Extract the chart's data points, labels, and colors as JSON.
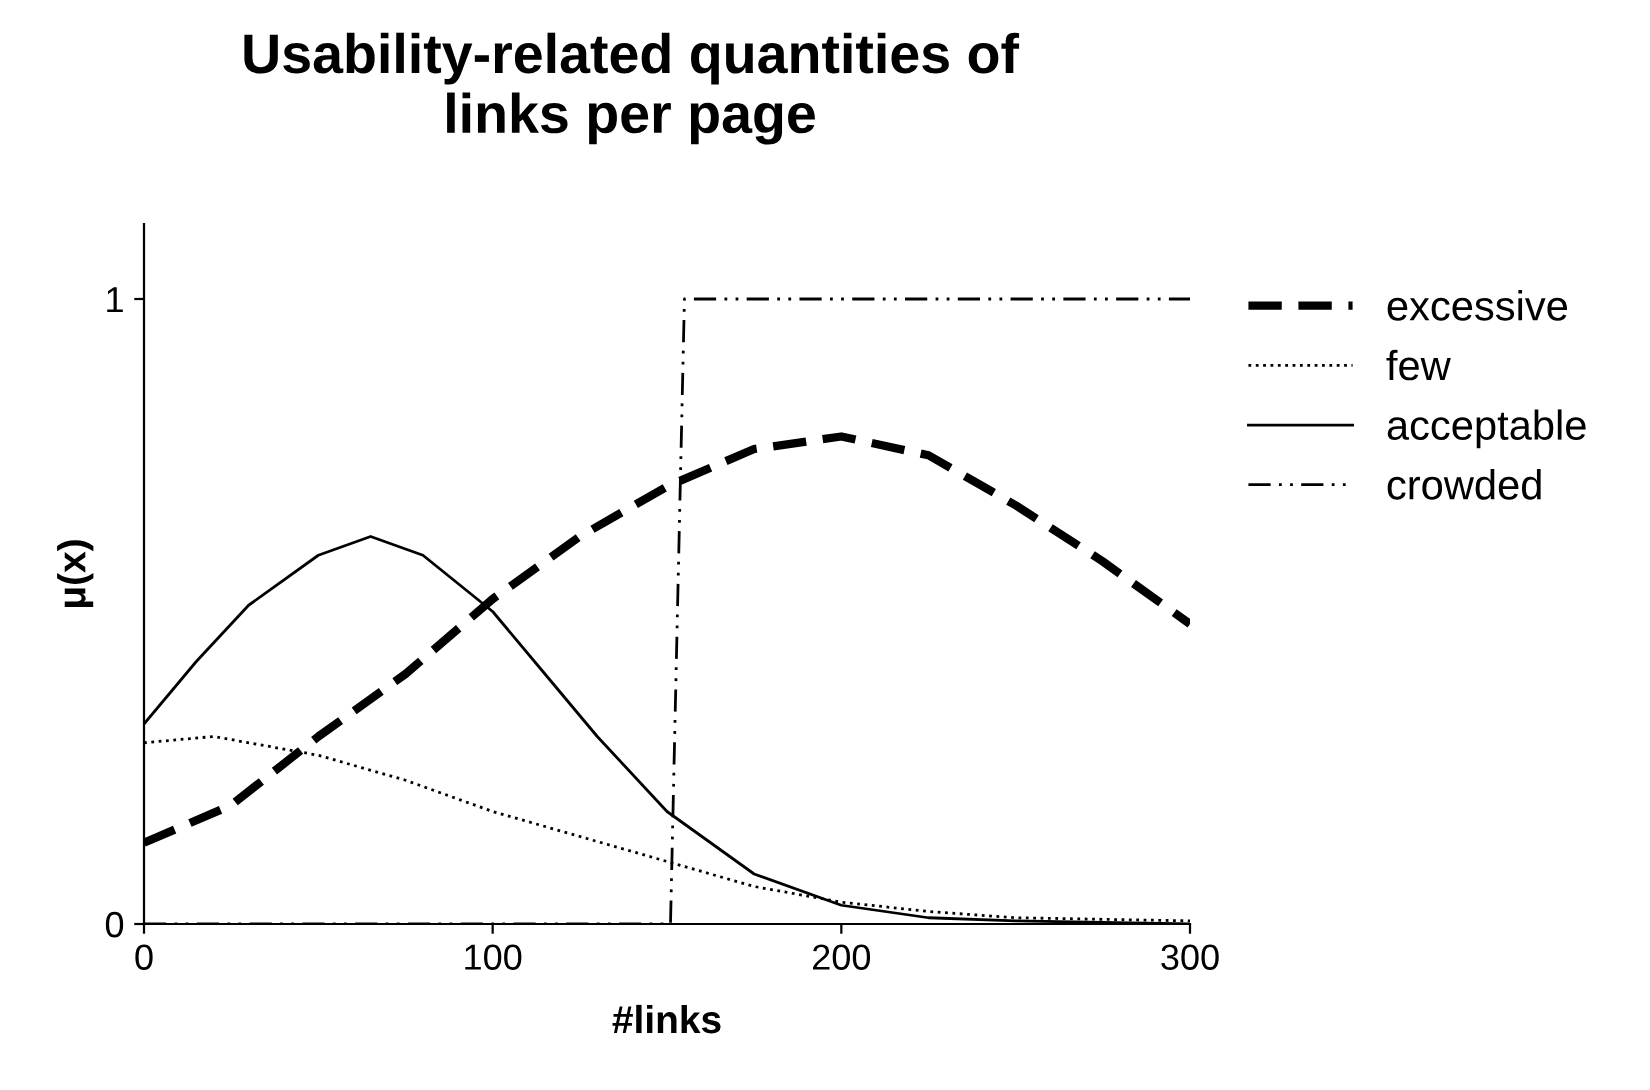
{
  "chart_data": {
    "type": "line",
    "title": "Usability-related quantities of\nlinks per page",
    "xlabel": "#links",
    "ylabel": "μ(x)",
    "xlim": [
      0,
      300
    ],
    "ylim": [
      0,
      1.12
    ],
    "xticks": [
      0,
      100,
      200,
      300
    ],
    "yticks": [
      0,
      1
    ],
    "grid": false,
    "legend": "right",
    "series": [
      {
        "name": "excessive",
        "color": "#000000",
        "line_style": "dashed",
        "x": [
          0,
          25,
          50,
          75,
          100,
          125,
          150,
          175,
          200,
          225,
          250,
          275,
          300
        ],
        "values": [
          0.13,
          0.19,
          0.3,
          0.4,
          0.52,
          0.62,
          0.7,
          0.76,
          0.78,
          0.75,
          0.67,
          0.58,
          0.48
        ]
      },
      {
        "name": "few",
        "color": "#000000",
        "line_style": "dotted",
        "x": [
          0,
          20,
          50,
          75,
          100,
          125,
          150,
          175,
          200,
          225,
          250,
          300
        ],
        "values": [
          0.29,
          0.3,
          0.27,
          0.23,
          0.18,
          0.14,
          0.1,
          0.06,
          0.035,
          0.02,
          0.01,
          0.005
        ]
      },
      {
        "name": "acceptable",
        "color": "#000000",
        "line_style": "solid",
        "x": [
          0,
          15,
          30,
          50,
          65,
          80,
          100,
          115,
          130,
          150,
          175,
          200,
          225,
          250,
          300
        ],
        "values": [
          0.32,
          0.42,
          0.51,
          0.59,
          0.62,
          0.59,
          0.5,
          0.4,
          0.3,
          0.18,
          0.08,
          0.03,
          0.01,
          0.005,
          0
        ]
      },
      {
        "name": "crowded",
        "color": "#000000",
        "line_style": "dashdot",
        "x": [
          0,
          151,
          155,
          300
        ],
        "values": [
          0,
          0,
          1,
          1
        ]
      }
    ]
  }
}
